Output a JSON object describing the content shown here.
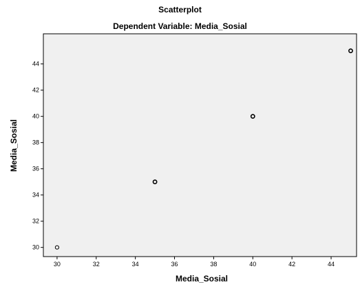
{
  "chart_data": {
    "type": "scatter",
    "title": "Scatterplot",
    "subtitle": "Dependent Variable: Media_Sosial",
    "xlabel": "Media_Sosial",
    "ylabel": "Media_Sosial",
    "x": [
      30,
      35,
      40,
      45
    ],
    "y": [
      30,
      35,
      40,
      45
    ],
    "xlim": [
      29.3,
      45.3
    ],
    "ylim": [
      29.3,
      46.3
    ],
    "xticks": [
      30,
      32,
      34,
      36,
      38,
      40,
      42,
      44
    ],
    "yticks": [
      30,
      32,
      34,
      36,
      38,
      40,
      42,
      44
    ],
    "grid": false,
    "colors": {
      "plot_background": "#f0f0f0",
      "frame": "#000000",
      "marker_edge": "#000000"
    }
  }
}
